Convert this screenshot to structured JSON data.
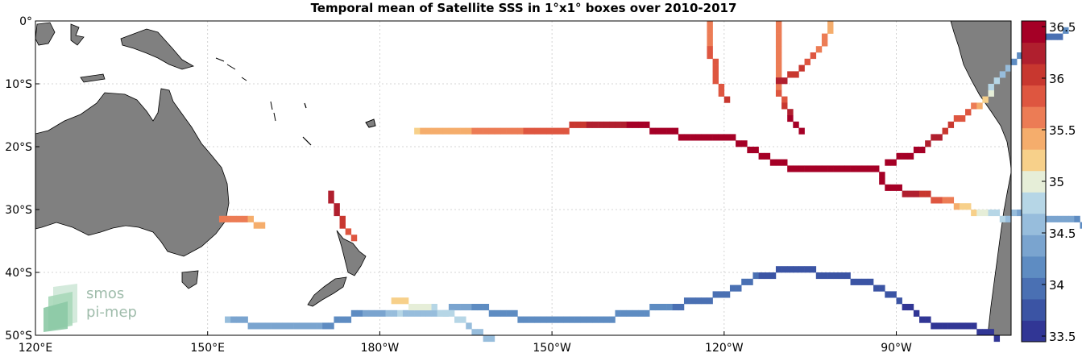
{
  "chart_data": {
    "type": "heatmap",
    "title": "Temporal mean of Satellite SSS in 1°x1° boxes over 2010-2017",
    "x_ticks": [
      "120°E",
      "150°E",
      "180°W",
      "150°W",
      "120°W",
      "90°W"
    ],
    "y_ticks": [
      "0°",
      "10°S",
      "20°S",
      "30°S",
      "40°S",
      "50°S"
    ],
    "xlim": [
      120,
      290
    ],
    "ylim": [
      -50,
      0
    ],
    "grid": true,
    "colormap": [
      "#313695",
      "#3b54a4",
      "#4a70b3",
      "#5e8cc2",
      "#7aa4cf",
      "#97bddc",
      "#b6d6e6",
      "#e6eed8",
      "#f7d08a",
      "#f5ad6c",
      "#ec7c55",
      "#de5640",
      "#c8372f",
      "#b01f2e",
      "#a50026"
    ],
    "colorbar": {
      "range": [
        33.5,
        36.5
      ],
      "ticks": [
        "33.5",
        "34",
        "34.5",
        "35",
        "35.5",
        "36",
        "36.5"
      ]
    },
    "land_color": "#808080",
    "tracks": [
      {
        "name": "track-ne-eq",
        "points": [
          [
            249,
            0,
            35.5
          ],
          [
            249,
            -5,
            35.5
          ],
          [
            249,
            -10,
            35.6
          ],
          [
            250,
            -13,
            36.0
          ],
          [
            252,
            -16,
            36.5
          ],
          [
            254,
            -18,
            36.6
          ]
        ]
      },
      {
        "name": "track-equator-feed",
        "points": [
          [
            237,
            0,
            35.6
          ],
          [
            237,
            -4,
            35.7
          ],
          [
            238,
            -8,
            35.8
          ],
          [
            239,
            -11,
            35.9
          ],
          [
            240,
            -13,
            36.1
          ]
        ]
      },
      {
        "name": "track-marquesas",
        "points": [
          [
            258,
            0,
            35.4
          ],
          [
            256,
            -4,
            35.6
          ],
          [
            254,
            -6,
            35.9
          ],
          [
            252,
            -8,
            36.0
          ],
          [
            250,
            -9,
            36.1
          ],
          [
            248,
            -10,
            36.2
          ]
        ]
      },
      {
        "name": "track-tonga-east",
        "points": [
          [
            186,
            -17,
            35.3
          ],
          [
            192,
            -17,
            35.4
          ],
          [
            200,
            -17,
            35.6
          ],
          [
            210,
            -17,
            35.8
          ],
          [
            216,
            -16,
            36.1
          ],
          [
            220,
            -16,
            36.2
          ]
        ]
      },
      {
        "name": "track-central-loop",
        "points": [
          [
            220,
            -16,
            36.2
          ],
          [
            225,
            -16,
            36.4
          ],
          [
            228,
            -17,
            36.4
          ],
          [
            234,
            -18,
            36.5
          ],
          [
            240,
            -18,
            36.5
          ],
          [
            246,
            -21,
            36.6
          ],
          [
            252,
            -23,
            36.6
          ],
          [
            258,
            -23,
            36.7
          ],
          [
            266,
            -23,
            36.6
          ],
          [
            268,
            -26,
            36.5
          ],
          [
            272,
            -27,
            36.2
          ],
          [
            278,
            -28,
            35.6
          ],
          [
            284,
            -30,
            35.0
          ],
          [
            290,
            -31,
            34.6
          ]
        ]
      },
      {
        "name": "track-east-rise",
        "points": [
          [
            268,
            -22,
            36.6
          ],
          [
            274,
            -20,
            36.4
          ],
          [
            278,
            -17,
            36.0
          ],
          [
            282,
            -14,
            35.8
          ],
          [
            285,
            -12,
            35.2
          ],
          [
            287,
            -9,
            34.7
          ],
          [
            290,
            -6,
            34.4
          ]
        ]
      },
      {
        "name": "track-chile-coast",
        "points": [
          [
            290,
            -30,
            34.5
          ],
          [
            298,
            -31,
            34.4
          ],
          [
            304,
            -32,
            34.2
          ],
          [
            306,
            -34,
            34.1
          ],
          [
            306,
            -38,
            34.0
          ],
          [
            306,
            -42,
            33.9
          ],
          [
            306,
            -46,
            33.8
          ]
        ]
      },
      {
        "name": "track-peru",
        "points": [
          [
            290,
            -6,
            34.3
          ],
          [
            294,
            -3,
            34.1
          ],
          [
            298,
            -2,
            34.0
          ],
          [
            300,
            -1,
            34.5
          ]
        ]
      },
      {
        "name": "track-southern",
        "points": [
          [
            183,
            -46,
            34.7
          ],
          [
            188,
            -46,
            34.6
          ],
          [
            196,
            -45,
            34.3
          ],
          [
            206,
            -47,
            34.2
          ],
          [
            218,
            -47,
            34.2
          ],
          [
            230,
            -45,
            34.1
          ],
          [
            240,
            -43,
            34.0
          ],
          [
            246,
            -40,
            33.9
          ],
          [
            252,
            -39,
            33.9
          ],
          [
            258,
            -40,
            33.9
          ],
          [
            264,
            -41,
            33.8
          ],
          [
            270,
            -44,
            33.7
          ],
          [
            276,
            -48,
            33.6
          ],
          [
            282,
            -48,
            33.5
          ],
          [
            288,
            -50,
            33.6
          ]
        ]
      },
      {
        "name": "track-tasman",
        "points": [
          [
            153,
            -47,
            34.5
          ],
          [
            160,
            -48,
            34.4
          ],
          [
            170,
            -48,
            34.3
          ],
          [
            176,
            -46,
            34.3
          ],
          [
            183,
            -46,
            34.6
          ]
        ]
      },
      {
        "name": "track-nz-south",
        "points": [
          [
            182,
            -44,
            35.2
          ],
          [
            186,
            -45,
            35.0
          ],
          [
            192,
            -46,
            34.8
          ],
          [
            196,
            -49,
            34.6
          ],
          [
            200,
            -51,
            34.5
          ]
        ]
      },
      {
        "name": "track-nz-north",
        "points": [
          [
            171,
            -27,
            36.2
          ],
          [
            172,
            -30,
            36.1
          ],
          [
            174,
            -33,
            35.9
          ],
          [
            176,
            -35,
            35.5
          ]
        ]
      },
      {
        "name": "track-aus-east",
        "points": [
          [
            152,
            -31,
            35.6
          ],
          [
            156,
            -31,
            35.5
          ],
          [
            160,
            -33,
            35.4
          ]
        ]
      }
    ]
  },
  "logo": {
    "line1": "smos",
    "line2": "pi-mep"
  }
}
